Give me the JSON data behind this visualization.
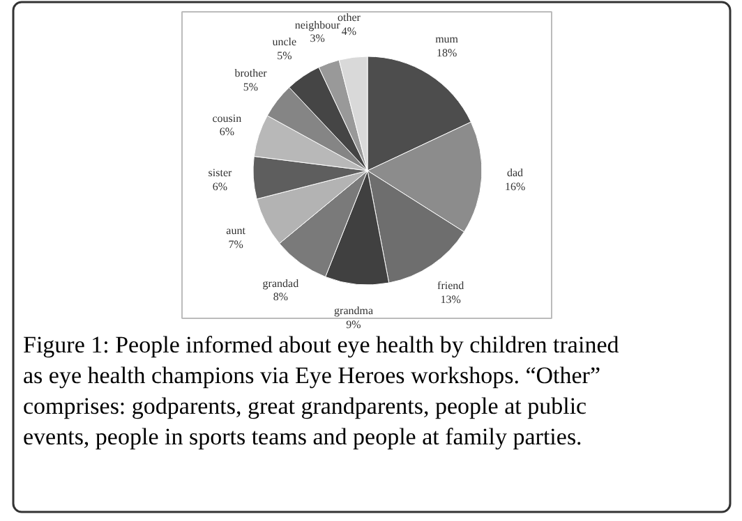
{
  "chart_data": {
    "type": "pie",
    "categories": [
      "mum",
      "dad",
      "friend",
      "grandma",
      "grandad",
      "aunt",
      "sister",
      "cousin",
      "brother",
      "uncle",
      "neighbour",
      "other"
    ],
    "values": [
      18,
      16,
      13,
      9,
      8,
      7,
      6,
      6,
      5,
      5,
      3,
      4
    ],
    "value_labels": [
      "18%",
      "16%",
      "13%",
      "9%",
      "8%",
      "7%",
      "6%",
      "6%",
      "5%",
      "5%",
      "3%",
      "4%"
    ],
    "colors": [
      "#4d4d4d",
      "#8c8c8c",
      "#6e6e6e",
      "#404040",
      "#7a7a7a",
      "#b3b3b3",
      "#5e5e5e",
      "#b8b8b8",
      "#858585",
      "#454545",
      "#999999",
      "#d9d9d9"
    ],
    "annotations": [
      "Figure 1: People informed about eye health by children trained as eye health champions via Eye Heroes workshops. “Other” comprises: godparents, great grandparents, people at public events, people in sports teams and people at family parties."
    ]
  }
}
